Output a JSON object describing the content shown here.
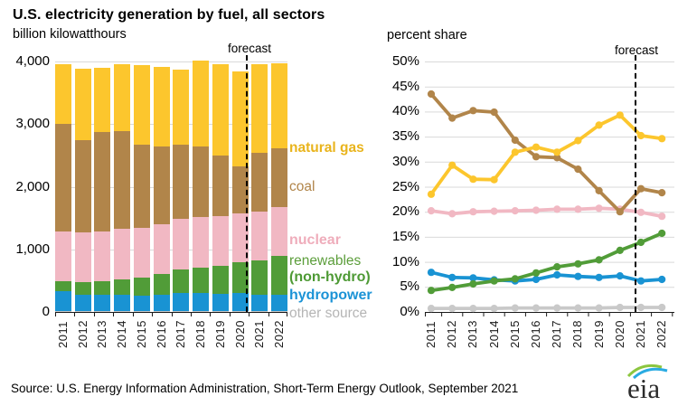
{
  "header": {
    "title": "U.S. electricity generation by fuel, all sectors",
    "left_subtitle": "billion kilowatthours",
    "right_subtitle": "percent share"
  },
  "forecast_label": "forecast",
  "source_line": "Source: U.S. Energy Information Administration, Short-Term Energy Outlook, September 2021",
  "logo_text": "eia",
  "legend": {
    "natural_gas": "natural gas",
    "coal": "coal",
    "nuclear": "nuclear",
    "renewables_line1": "renewables",
    "renewables_line2": "(non-hydro)",
    "hydropower": "hydropower",
    "other": "other source"
  },
  "colors": {
    "natural_gas": "#FCC62D",
    "coal": "#B1854A",
    "nuclear": "#F1B8C3",
    "renewables": "#519C38",
    "hydropower": "#1993D3",
    "other": "#C6C6C6",
    "gridline": "#D9D9D9",
    "axis": "#1A1A1A",
    "forecast_line": "#000000"
  },
  "chart_data": [
    {
      "type": "bar",
      "stacked": true,
      "title": "U.S. electricity generation by fuel, all sectors",
      "subtitle": "billion kilowatthours",
      "categories": [
        "2011",
        "2012",
        "2013",
        "2014",
        "2015",
        "2016",
        "2017",
        "2018",
        "2019",
        "2020",
        "2021",
        "2022"
      ],
      "ylim": [
        0,
        4000
      ],
      "ytick_values": [
        0,
        1000,
        2000,
        3000,
        4000
      ],
      "ytick_labels": [
        "0",
        "1,000",
        "2,000",
        "3,000",
        "4,000"
      ],
      "grid": true,
      "forecast_from": "2021",
      "series": [
        {
          "name": "other source",
          "color": "#C6C6C6",
          "values": [
            15,
            15,
            15,
            15,
            15,
            15,
            15,
            15,
            15,
            15,
            15,
            15
          ]
        },
        {
          "name": "hydropower",
          "color": "#1993D3",
          "values": [
            315,
            265,
            265,
            255,
            245,
            265,
            295,
            290,
            270,
            285,
            255,
            265
          ]
        },
        {
          "name": "renewables (non-hydro)",
          "color": "#519C38",
          "values": [
            160,
            195,
            210,
            255,
            290,
            320,
            375,
            405,
            445,
            490,
            550,
            610
          ]
        },
        {
          "name": "nuclear",
          "color": "#F1B8C3",
          "values": [
            800,
            790,
            800,
            800,
            795,
            805,
            805,
            800,
            805,
            790,
            785,
            780
          ]
        },
        {
          "name": "coal",
          "color": "#B1854A",
          "values": [
            1720,
            1480,
            1580,
            1570,
            1325,
            1245,
            1180,
            1140,
            970,
            745,
            930,
            940
          ]
        },
        {
          "name": "natural gas",
          "color": "#FCC62D",
          "values": [
            945,
            1145,
            1035,
            1065,
            1275,
            1270,
            1195,
            1370,
            1450,
            1515,
            1420,
            1360
          ]
        }
      ]
    },
    {
      "type": "line",
      "title": "percent share",
      "categories": [
        "2011",
        "2012",
        "2013",
        "2014",
        "2015",
        "2016",
        "2017",
        "2018",
        "2019",
        "2020",
        "2021",
        "2022"
      ],
      "ylim": [
        0,
        50
      ],
      "ytick_values": [
        0,
        5,
        10,
        15,
        20,
        25,
        30,
        35,
        40,
        45,
        50
      ],
      "ytick_labels": [
        "0%",
        "5%",
        "10%",
        "15%",
        "20%",
        "25%",
        "30%",
        "35%",
        "40%",
        "45%",
        "50%"
      ],
      "grid": true,
      "forecast_from": "2021",
      "series": [
        {
          "name": "other source",
          "color": "#C9C9C9",
          "values": [
            0.7,
            0.7,
            0.7,
            0.7,
            0.8,
            0.8,
            0.8,
            0.8,
            0.8,
            0.9,
            0.9,
            0.9
          ]
        },
        {
          "name": "nuclear",
          "color": "#F1B8C3",
          "values": [
            20.2,
            19.6,
            20.0,
            20.1,
            20.2,
            20.3,
            20.5,
            20.5,
            20.7,
            20.5,
            19.9,
            19.1
          ]
        },
        {
          "name": "hydropower",
          "color": "#1993D3",
          "values": [
            7.9,
            6.9,
            6.8,
            6.4,
            6.2,
            6.5,
            7.4,
            7.1,
            6.9,
            7.2,
            6.2,
            6.5
          ]
        },
        {
          "name": "renewables (non-hydro)",
          "color": "#519C38",
          "values": [
            4.3,
            4.9,
            5.6,
            6.2,
            6.6,
            7.8,
            9.0,
            9.6,
            10.4,
            12.3,
            13.9,
            15.7
          ]
        },
        {
          "name": "coal",
          "color": "#B1854A",
          "values": [
            43.5,
            38.7,
            40.2,
            39.9,
            34.3,
            31.0,
            30.8,
            28.5,
            24.2,
            20.0,
            24.6,
            23.8
          ]
        },
        {
          "name": "natural gas",
          "color": "#FCC62D",
          "values": [
            23.5,
            29.3,
            26.5,
            26.4,
            31.9,
            32.9,
            31.9,
            34.2,
            37.3,
            39.3,
            35.2,
            34.6
          ]
        }
      ]
    }
  ]
}
